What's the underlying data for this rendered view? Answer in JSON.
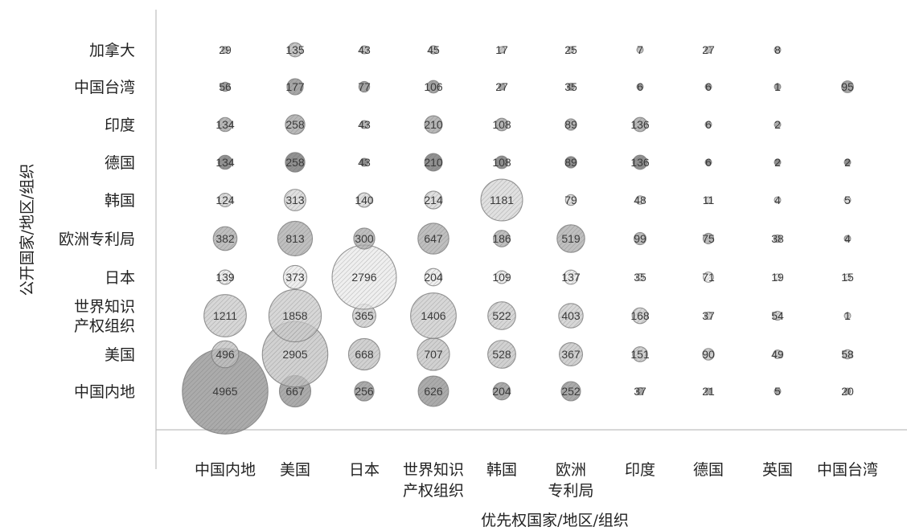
{
  "chart_data": {
    "type": "bubble",
    "xlabel": "优先权国家/地区/组织",
    "ylabel": "公开国家/地区/组织",
    "x_categories": [
      [
        "中国内地"
      ],
      [
        "美国"
      ],
      [
        "日本"
      ],
      [
        "世界知识",
        "产权组织"
      ],
      [
        "韩国"
      ],
      [
        "欧洲",
        "专利局"
      ],
      [
        "印度"
      ],
      [
        "德国"
      ],
      [
        "英国"
      ],
      [
        "中国台湾"
      ]
    ],
    "y_categories": [
      [
        "中国内地"
      ],
      [
        "美国"
      ],
      [
        "世界知识",
        "产权组织"
      ],
      [
        "日本"
      ],
      [
        "欧洲专利局"
      ],
      [
        "韩国"
      ],
      [
        "德国"
      ],
      [
        "印度"
      ],
      [
        "中国台湾"
      ],
      [
        "加拿大"
      ]
    ],
    "series": [
      {
        "color": "#8f8f8f",
        "values": [
          4965,
          667,
          256,
          626,
          204,
          252,
          37,
          21,
          5,
          20
        ]
      },
      {
        "color": "#c2c2c2",
        "values": [
          496,
          2905,
          668,
          707,
          528,
          367,
          151,
          90,
          49,
          58
        ]
      },
      {
        "color": "#c9c9c9",
        "values": [
          1211,
          1858,
          365,
          1406,
          522,
          403,
          168,
          37,
          54,
          1
        ]
      },
      {
        "color": "#e9e9e9",
        "values": [
          139,
          373,
          2796,
          204,
          109,
          137,
          35,
          71,
          19,
          15
        ]
      },
      {
        "color": "#a9a9a9",
        "values": [
          382,
          813,
          300,
          647,
          186,
          519,
          99,
          75,
          38,
          4
        ]
      },
      {
        "color": "#d6d6d6",
        "values": [
          124,
          313,
          140,
          214,
          1181,
          79,
          48,
          11,
          4,
          5
        ]
      },
      {
        "color": "#6e6e6e",
        "values": [
          134,
          258,
          43,
          210,
          108,
          89,
          136,
          6,
          2,
          2
        ]
      },
      {
        "color": "#a0a0a0",
        "values": [
          134,
          258,
          43,
          210,
          108,
          89,
          136,
          6,
          2,
          null
        ]
      },
      {
        "color": "#8a8a8a",
        "values": [
          56,
          177,
          77,
          106,
          27,
          35,
          6,
          6,
          1,
          95
        ]
      },
      {
        "color": "#b4b4b4",
        "values": [
          29,
          135,
          43,
          45,
          17,
          25,
          7,
          27,
          8,
          null
        ]
      }
    ]
  }
}
